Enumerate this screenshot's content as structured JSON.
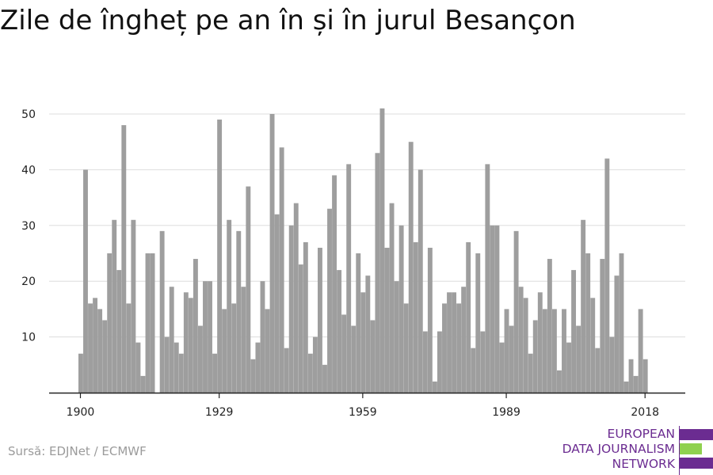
{
  "title": "Zile de îngheț pe an în și în jurul Besançon",
  "source": "Sursă: EDJNet / ECMWF",
  "logo": {
    "line1": "EUROPEAN",
    "line2": "DATA JOURNALISM",
    "line3": "NETWORK",
    "colors": {
      "purple": "#6b2c91",
      "green": "#8fd14f"
    }
  },
  "colors": {
    "bar": "#9e9e9e",
    "grid": "#dddddd",
    "axis": "#222222",
    "text": "#222222"
  },
  "chart_data": {
    "type": "bar",
    "title": "Zile de îngheț pe an în și în jurul Besançon",
    "xlabel": "",
    "ylabel": "",
    "ylim": [
      0,
      53
    ],
    "yticks": [
      10,
      20,
      30,
      40,
      50
    ],
    "xticks": [
      1900,
      1929,
      1959,
      1989,
      2018
    ],
    "grid": true,
    "x_start": 1900,
    "x": [
      1900,
      1901,
      1902,
      1903,
      1904,
      1905,
      1906,
      1907,
      1908,
      1909,
      1910,
      1911,
      1912,
      1913,
      1914,
      1915,
      1916,
      1917,
      1918,
      1919,
      1920,
      1921,
      1922,
      1923,
      1924,
      1925,
      1926,
      1927,
      1928,
      1929,
      1930,
      1931,
      1932,
      1933,
      1934,
      1935,
      1936,
      1937,
      1938,
      1939,
      1940,
      1941,
      1942,
      1943,
      1944,
      1945,
      1946,
      1947,
      1948,
      1949,
      1950,
      1951,
      1952,
      1953,
      1954,
      1955,
      1956,
      1957,
      1958,
      1959,
      1960,
      1961,
      1962,
      1963,
      1964,
      1965,
      1966,
      1967,
      1968,
      1969,
      1970,
      1971,
      1972,
      1973,
      1974,
      1975,
      1976,
      1977,
      1978,
      1979,
      1980,
      1981,
      1982,
      1983,
      1984,
      1985,
      1986,
      1987,
      1988,
      1989,
      1990,
      1991,
      1992,
      1993,
      1994,
      1995,
      1996,
      1997,
      1998,
      1999,
      2000,
      2001,
      2002,
      2003,
      2004,
      2005,
      2006,
      2007,
      2008,
      2009,
      2010,
      2011,
      2012,
      2013,
      2014,
      2015,
      2016,
      2017,
      2018
    ],
    "values": [
      7,
      40,
      16,
      17,
      15,
      13,
      25,
      31,
      22,
      48,
      16,
      31,
      9,
      3,
      25,
      25,
      0,
      29,
      10,
      19,
      9,
      7,
      18,
      17,
      24,
      12,
      20,
      20,
      7,
      49,
      15,
      31,
      16,
      29,
      19,
      37,
      6,
      9,
      20,
      15,
      50,
      32,
      44,
      8,
      30,
      34,
      23,
      27,
      7,
      10,
      26,
      5,
      33,
      39,
      22,
      14,
      41,
      12,
      25,
      18,
      21,
      13,
      43,
      51,
      26,
      34,
      20,
      30,
      16,
      45,
      27,
      40,
      11,
      26,
      2,
      11,
      16,
      18,
      18,
      16,
      19,
      27,
      8,
      25,
      11,
      41,
      30,
      30,
      9,
      15,
      12,
      29,
      19,
      17,
      7,
      13,
      18,
      15,
      24,
      15,
      4,
      15,
      9,
      22,
      12,
      31,
      25,
      17,
      8,
      24,
      42,
      10,
      21,
      25,
      2,
      6,
      3,
      15,
      6
    ]
  }
}
